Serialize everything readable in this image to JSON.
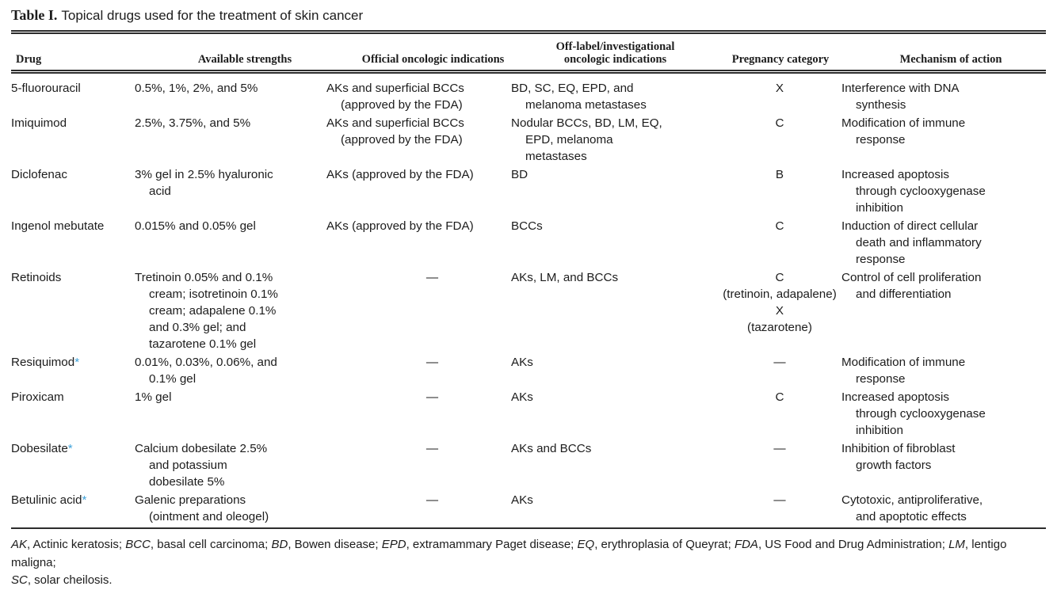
{
  "title": {
    "label": "Table I.",
    "text": "Topical drugs used for the treatment of skin cancer"
  },
  "table": {
    "headers": [
      "Drug",
      "Available strengths",
      "Official oncologic indications",
      "Off-label/investigational\noncologic indications",
      "Pregnancy category",
      "Mechanism of action"
    ],
    "dash": "—",
    "asterisk_symbol": "*",
    "rows": [
      {
        "drug": "5-fluorouracil",
        "asterisk": false,
        "strengths": "0.5%, 1%, 2%, and 5%",
        "official": "AKs and superficial BCCs\n(approved by the FDA)",
        "off_label": "BD, SC, EQ, EPD, and\nmelanoma metastases",
        "pregnancy": "X",
        "mechanism": "Interference with DNA\nsynthesis"
      },
      {
        "drug": "Imiquimod",
        "asterisk": false,
        "strengths": "2.5%, 3.75%, and 5%",
        "official": "AKs and superficial BCCs\n(approved by the FDA)",
        "off_label": "Nodular BCCs, BD, LM, EQ,\nEPD, melanoma\nmetastases",
        "pregnancy": "C",
        "mechanism": "Modification of immune\nresponse"
      },
      {
        "drug": "Diclofenac",
        "asterisk": false,
        "strengths": "3% gel in 2.5% hyaluronic\nacid",
        "official": "AKs (approved by the FDA)",
        "off_label": "BD",
        "pregnancy": "B",
        "mechanism": "Increased apoptosis\nthrough cyclooxygenase\ninhibition"
      },
      {
        "drug": "Ingenol mebutate",
        "asterisk": false,
        "strengths": "0.015% and 0.05% gel",
        "official": "AKs (approved by the FDA)",
        "off_label": "BCCs",
        "pregnancy": "C",
        "mechanism": "Induction of direct cellular\ndeath and inflammatory\nresponse"
      },
      {
        "drug": "Retinoids",
        "asterisk": false,
        "strengths": "Tretinoin 0.05% and 0.1%\ncream; isotretinoin 0.1%\ncream; adapalene 0.1%\nand 0.3% gel; and\ntazarotene 0.1% gel",
        "official": "—",
        "off_label": "AKs, LM, and BCCs",
        "pregnancy": "C\n(tretinoin, adapalene)\nX\n(tazarotene)",
        "mechanism": "Control of cell proliferation\nand differentiation"
      },
      {
        "drug": "Resiquimod",
        "asterisk": true,
        "strengths": "0.01%, 0.03%, 0.06%, and\n0.1% gel",
        "official": "—",
        "off_label": "AKs",
        "pregnancy": "—",
        "mechanism": "Modification of immune\nresponse"
      },
      {
        "drug": "Piroxicam",
        "asterisk": false,
        "strengths": "1% gel",
        "official": "—",
        "off_label": "AKs",
        "pregnancy": "C",
        "mechanism": "Increased apoptosis\nthrough cyclooxygenase\ninhibition"
      },
      {
        "drug": "Dobesilate",
        "asterisk": true,
        "strengths": "Calcium dobesilate 2.5%\nand potassium\ndobesilate 5%",
        "official": "—",
        "off_label": "AKs and BCCs",
        "pregnancy": "—",
        "mechanism": "Inhibition of fibroblast\ngrowth factors"
      },
      {
        "drug": "Betulinic acid",
        "asterisk": true,
        "strengths": "Galenic preparations\n(ointment and oleogel)",
        "official": "—",
        "off_label": "AKs",
        "pregnancy": "—",
        "mechanism": "Cytotoxic, antiproliferative,\nand apoptotic effects"
      }
    ]
  },
  "footnote": {
    "segments": [
      {
        "t": "AK",
        "i": true
      },
      {
        "t": ", Actinic keratosis; "
      },
      {
        "t": "BCC",
        "i": true
      },
      {
        "t": ", basal cell carcinoma; "
      },
      {
        "t": "BD",
        "i": true
      },
      {
        "t": ", Bowen disease; "
      },
      {
        "t": "EPD",
        "i": true
      },
      {
        "t": ", extramammary Paget disease; "
      },
      {
        "t": "EQ",
        "i": true
      },
      {
        "t": ", erythroplasia of Queyrat; "
      },
      {
        "t": "FDA",
        "i": true
      },
      {
        "t": ", US Food and Drug Administration; "
      },
      {
        "t": "LM",
        "i": true
      },
      {
        "t": ", lentigo maligna;\n"
      },
      {
        "t": "SC",
        "i": true
      },
      {
        "t": ", solar cheilosis."
      }
    ]
  },
  "colors": {
    "text": "#1c1c1c",
    "rule": "#2c2c2c",
    "asterisk_blue": "#3fa2da"
  }
}
